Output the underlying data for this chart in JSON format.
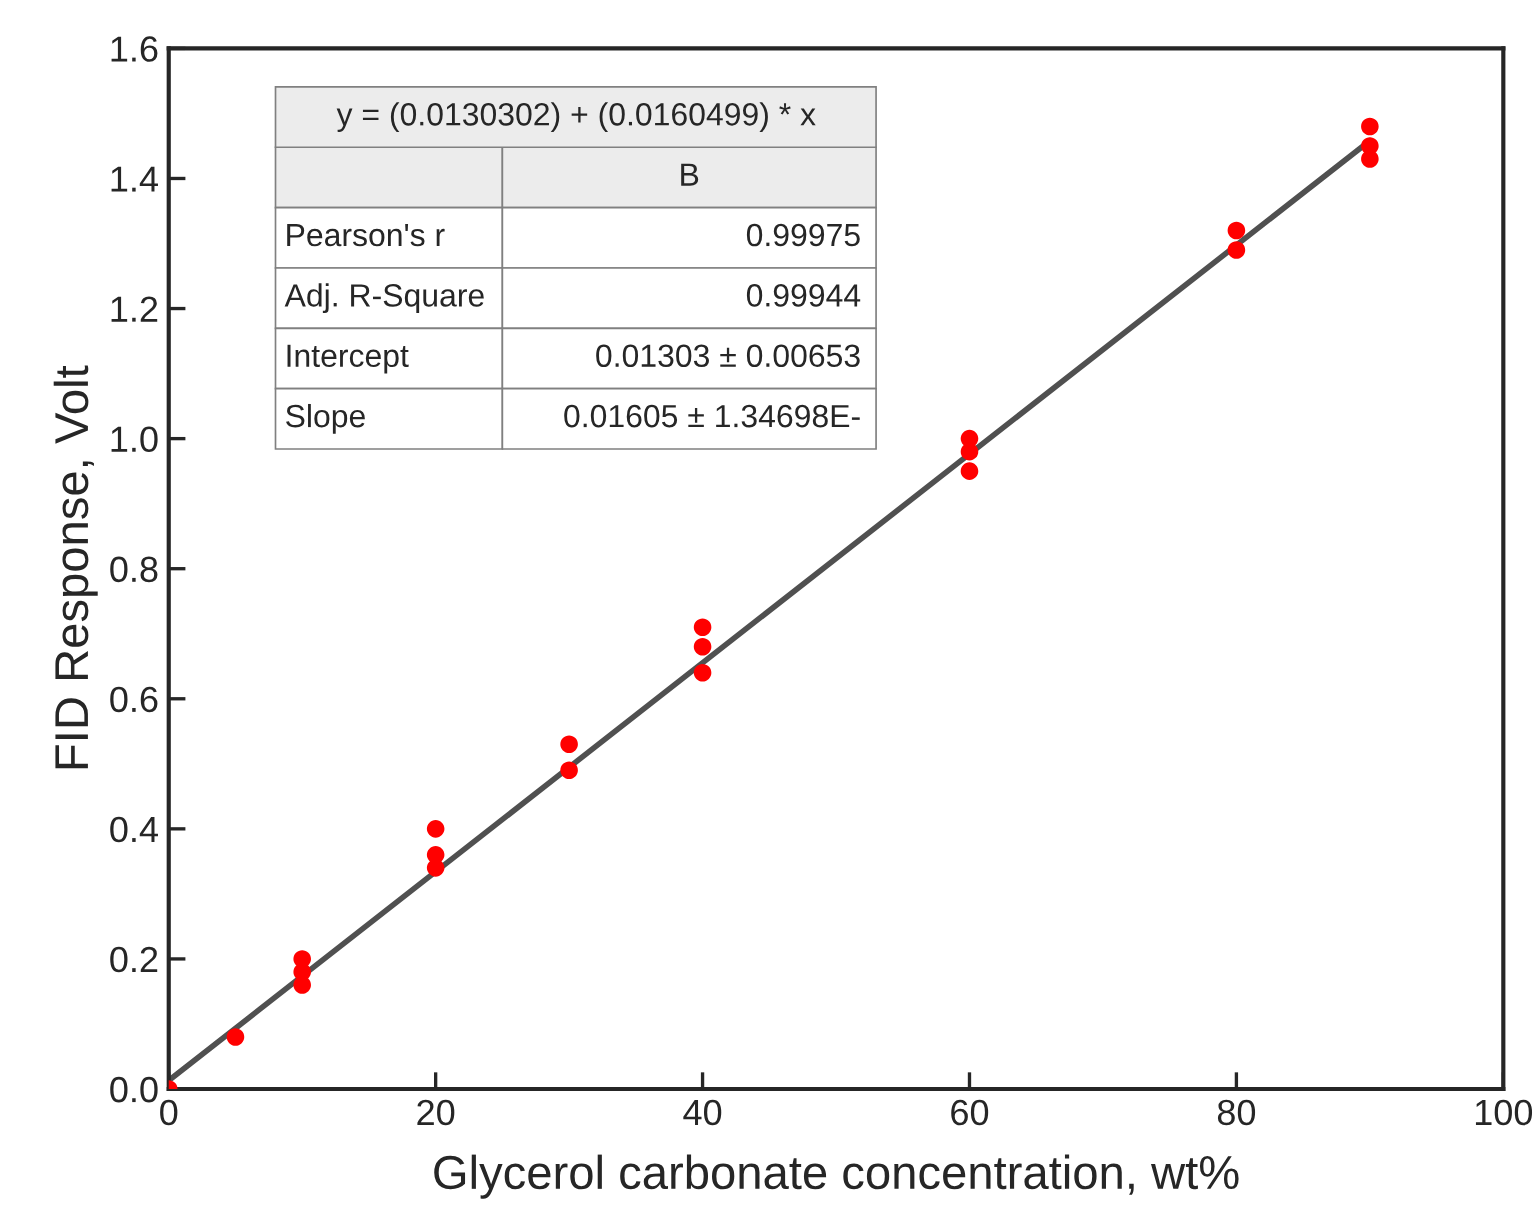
{
  "chart_data": {
    "type": "scatter",
    "xlabel": "Glycerol carbonate concentration, wt%",
    "ylabel": "FID Response, Volt",
    "xlim": [
      0,
      100
    ],
    "xticks": [
      0,
      20,
      40,
      60,
      80,
      100
    ],
    "ylim": [
      0,
      1.6
    ],
    "yticks": [
      {
        "value": 0,
        "label": "0.0"
      },
      0.2,
      0.4,
      0.6,
      0.8,
      {
        "value": 1,
        "label": "1.0"
      },
      1.2,
      1.4,
      1.6
    ],
    "grid": false,
    "marker": "circle",
    "series": [
      {
        "color": "#ff0000",
        "x": [
          0,
          5,
          10,
          10,
          10,
          20,
          20,
          20,
          30,
          30,
          40,
          40,
          40,
          60,
          60,
          60,
          80,
          80,
          90,
          90,
          90
        ],
        "values": [
          0,
          0.08,
          0.2,
          0.18,
          0.16,
          0.4,
          0.36,
          0.34,
          0.53,
          0.49,
          0.71,
          0.68,
          0.64,
          1.0,
          0.98,
          0.95,
          1.32,
          1.29,
          1.48,
          1.45,
          1.43
        ]
      },
      {
        "type": "line",
        "marker": "none",
        "color": "#505050",
        "x": [
          0,
          90
        ],
        "values": [
          0.013,
          1.458
        ]
      }
    ],
    "annotations": [
      "y = (0.0130302) + (0.0160499) * x",
      "B",
      "Pearson's r",
      "0.99975",
      "Adj. R-Square",
      "0.99944",
      "Intercept",
      "0.01303 ± 0.00653",
      "Slope",
      "0.01605 ± 1.34698E-"
    ]
  }
}
